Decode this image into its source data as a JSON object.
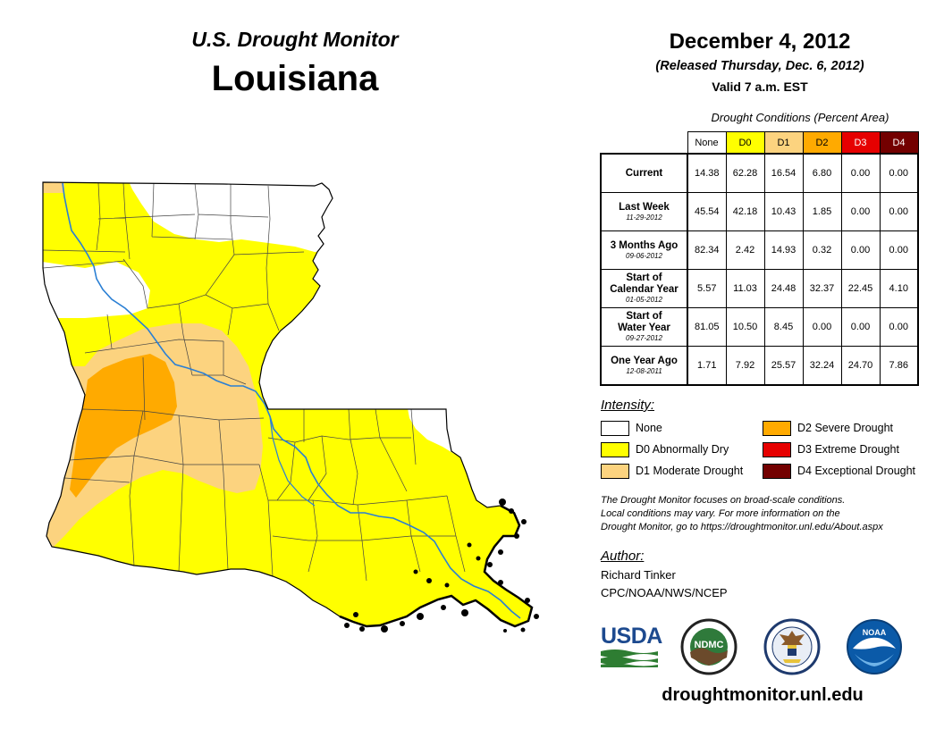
{
  "header": {
    "program": "U.S. Drought Monitor",
    "region": "Louisiana",
    "date": "December 4, 2012",
    "released": "(Released Thursday, Dec. 6, 2012)",
    "valid": "Valid 7 a.m. EST"
  },
  "colors": {
    "None": "#ffffff",
    "D0": "#ffff00",
    "D1": "#fcd37f",
    "D2": "#ffaa00",
    "D3": "#e60000",
    "D4": "#730000",
    "river": "#2a7fd4",
    "boundary": "#000000"
  },
  "table": {
    "caption": "Drought Conditions (Percent Area)",
    "columns": [
      "None",
      "D0",
      "D1",
      "D2",
      "D3",
      "D4"
    ],
    "rows": [
      {
        "label": [
          "Current"
        ],
        "values": [
          "14.38",
          "62.28",
          "16.54",
          "6.80",
          "0.00",
          "0.00"
        ]
      },
      {
        "label": [
          "Last Week"
        ],
        "date": "11-29-2012",
        "values": [
          "45.54",
          "42.18",
          "10.43",
          "1.85",
          "0.00",
          "0.00"
        ]
      },
      {
        "label": [
          "3 Months Ago"
        ],
        "date": "09-06-2012",
        "values": [
          "82.34",
          "2.42",
          "14.93",
          "0.32",
          "0.00",
          "0.00"
        ]
      },
      {
        "label": [
          "Start of",
          "Calendar Year"
        ],
        "date": "01-05-2012",
        "values": [
          "5.57",
          "11.03",
          "24.48",
          "32.37",
          "22.45",
          "4.10"
        ]
      },
      {
        "label": [
          "Start of",
          "Water Year"
        ],
        "date": "09-27-2012",
        "values": [
          "81.05",
          "10.50",
          "8.45",
          "0.00",
          "0.00",
          "0.00"
        ]
      },
      {
        "label": [
          "One Year Ago"
        ],
        "date": "12-08-2011",
        "values": [
          "1.71",
          "7.92",
          "25.57",
          "32.24",
          "24.70",
          "7.86"
        ]
      }
    ]
  },
  "legend": {
    "title": "Intensity:",
    "items": [
      {
        "key": "None",
        "label": "None"
      },
      {
        "key": "D0",
        "label": "D0 Abnormally Dry"
      },
      {
        "key": "D1",
        "label": "D1 Moderate Drought"
      },
      {
        "key": "D2",
        "label": "D2 Severe Drought"
      },
      {
        "key": "D3",
        "label": "D3 Extreme Drought"
      },
      {
        "key": "D4",
        "label": "D4 Exceptional Drought"
      }
    ]
  },
  "note": [
    "The Drought Monitor focuses on broad-scale conditions.",
    "Local conditions may vary. For more information on the",
    "Drought Monitor, go to https://droughtmonitor.unl.edu/About.aspx"
  ],
  "author": {
    "title": "Author:",
    "name": "Richard Tinker",
    "org": "CPC/NOAA/NWS/NCEP"
  },
  "logos": {
    "usda": "USDA",
    "ndmc": "NDMC",
    "noaa": "NOAA"
  },
  "footer": {
    "url": "droughtmonitor.unl.edu"
  }
}
